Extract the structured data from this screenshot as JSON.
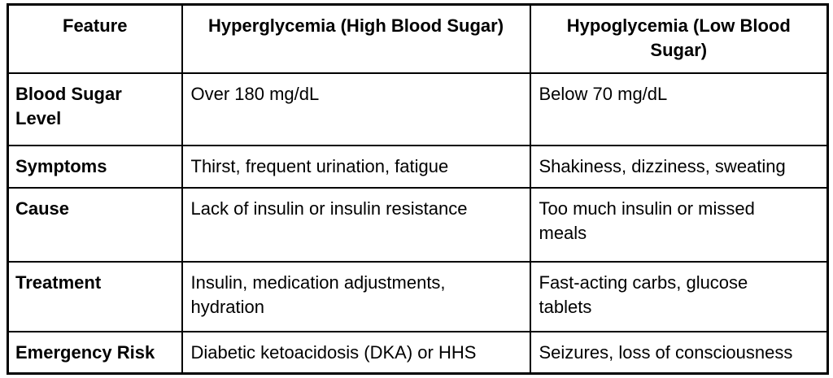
{
  "page": {
    "background_color": "#ffffff",
    "border_color": "#000000",
    "text_color": "#000000"
  },
  "table": {
    "columns": [
      {
        "key": "feature",
        "label": "Feature"
      },
      {
        "key": "hyperglycemia",
        "label": "Hyperglycemia (High Blood Sugar)"
      },
      {
        "key": "hypoglycemia",
        "label": "Hypoglycemia (Low Blood Sugar)"
      }
    ],
    "rows": [
      {
        "feature": "Blood Sugar Level",
        "hyperglycemia": "Over 180 mg/dL",
        "hypoglycemia": "Below 70 mg/dL"
      },
      {
        "feature": "Symptoms",
        "hyperglycemia": "Thirst, frequent urination, fatigue",
        "hypoglycemia": "Shakiness, dizziness, sweating"
      },
      {
        "feature": "Cause",
        "hyperglycemia": "Lack of insulin or insulin resistance",
        "hypoglycemia": "Too much insulin or missed meals"
      },
      {
        "feature": "Treatment",
        "hyperglycemia": "Insulin, medication adjustments, hydration",
        "hypoglycemia": "Fast-acting carbs, glucose tablets"
      },
      {
        "feature": "Emergency Risk",
        "hyperglycemia": "Diabetic ketoacidosis (DKA) or HHS",
        "hypoglycemia": "Seizures, loss of consciousness"
      }
    ]
  }
}
